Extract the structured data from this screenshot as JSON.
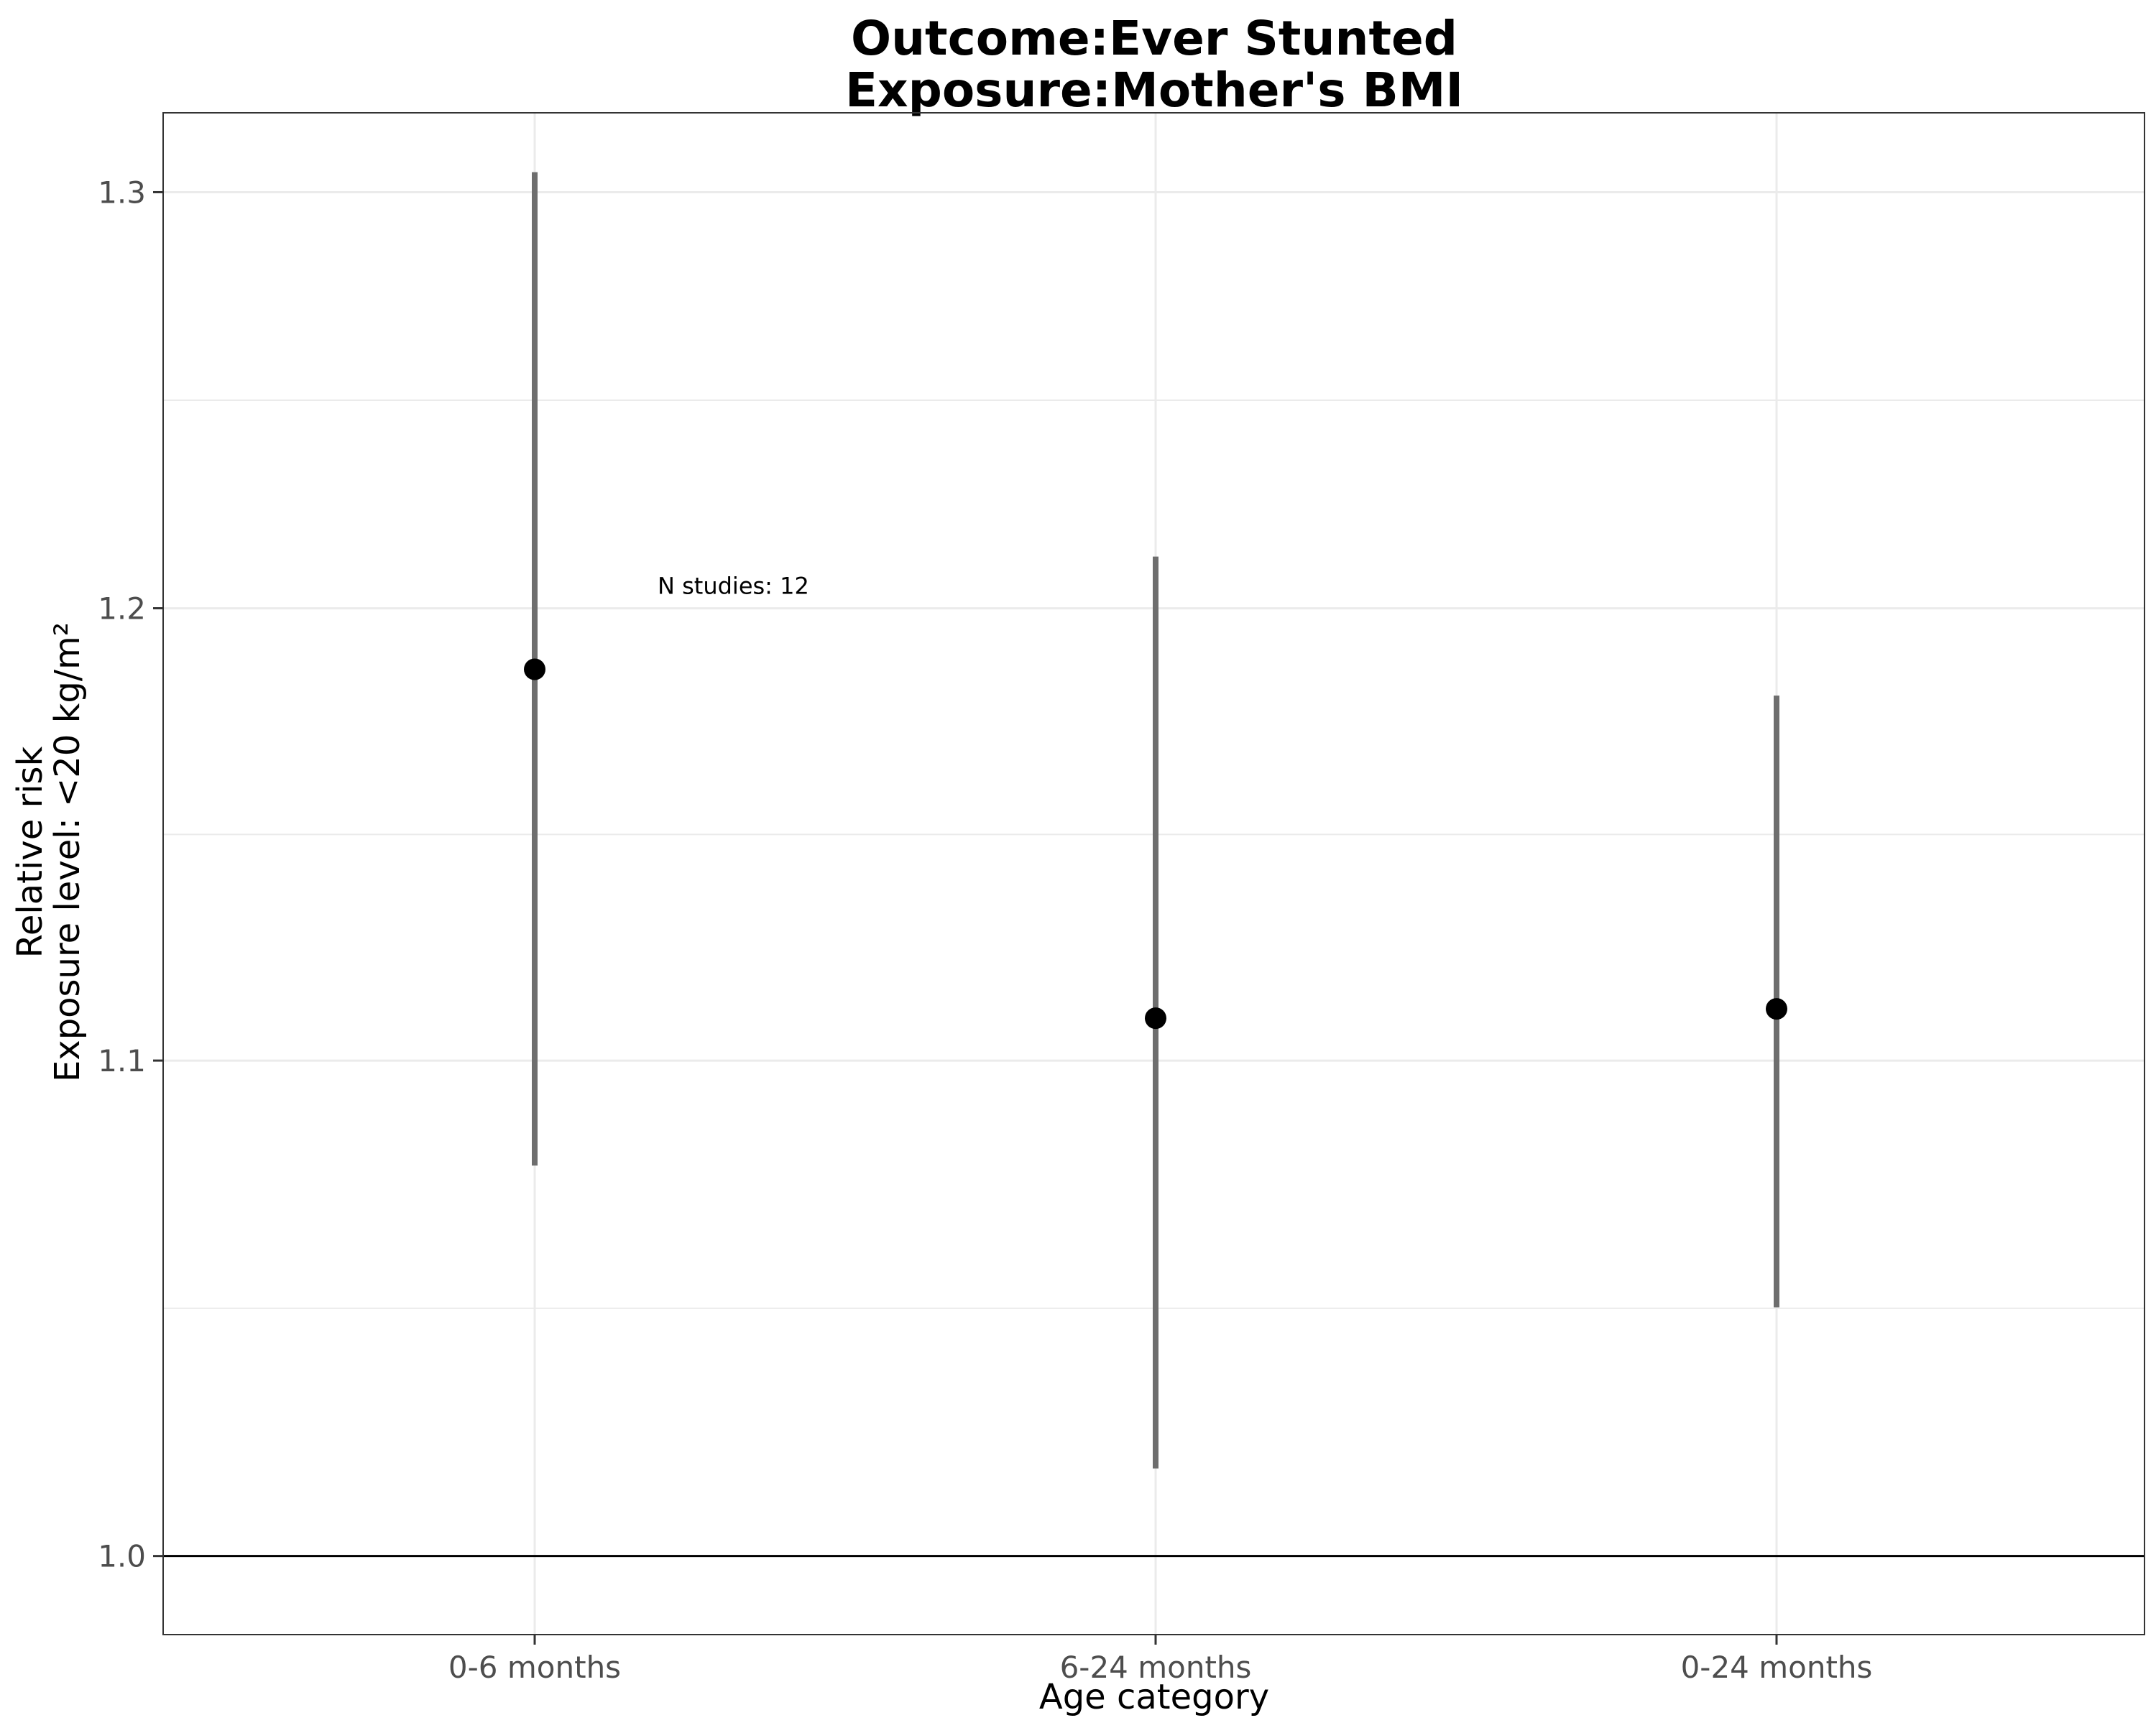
{
  "chart_data": {
    "type": "scatter",
    "title": "Outcome:Ever Stunted",
    "subtitle": "Exposure:Mother's BMI",
    "xlabel": "Age category",
    "ylabel": "Relative risk",
    "ylabel2": "Exposure level: <20 kg/m²",
    "categories": [
      "0-6 months",
      "6-24 months",
      "0-24 months"
    ],
    "estimates": [
      1.186,
      1.109,
      1.111
    ],
    "ci_lower": [
      1.078,
      1.017,
      1.049
    ],
    "ci_upper": [
      1.305,
      1.212,
      1.18
    ],
    "y_scale": "log",
    "ylim": [
      0.985,
      1.32
    ],
    "y_ticks": [
      1.0,
      1.1,
      1.2,
      1.3
    ],
    "y_tick_labels": [
      "1.0",
      "1.1",
      "1.2",
      "1.3"
    ],
    "reference_line": 1.0,
    "annotation": "N studies: 12",
    "grid": true,
    "colors": {
      "point": "#000000",
      "errorbar": "#6e6e6e",
      "grid": "#ebebeb",
      "reference": "#000000",
      "panel_border": "#333333"
    }
  }
}
